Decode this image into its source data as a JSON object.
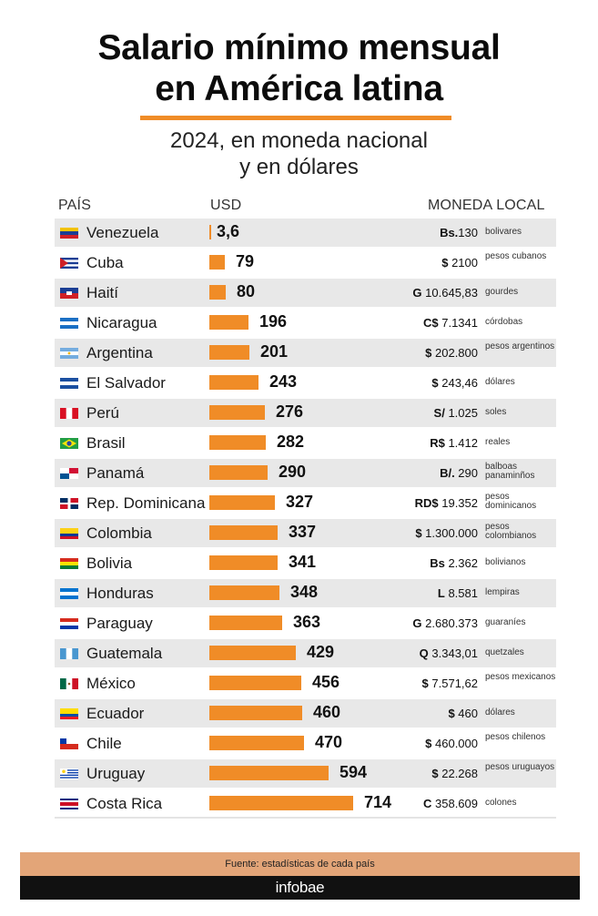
{
  "header": {
    "title_line1": "Salario mínimo mensual",
    "title_line2": "en América latina",
    "subtitle_line1": "2024, en moneda nacional",
    "subtitle_line2": "y en dólares"
  },
  "columns": {
    "country": "PAÍS",
    "usd": "USD",
    "local": "MONEDA LOCAL"
  },
  "chart_data": {
    "type": "bar",
    "categories": [
      "Venezuela",
      "Cuba",
      "Haití",
      "Nicaragua",
      "Argentina",
      "El Salvador",
      "Perú",
      "Brasil",
      "Panamá",
      "Rep. Dominicana",
      "Colombia",
      "Bolivia",
      "Honduras",
      "Paraguay",
      "Guatemala",
      "México",
      "Ecuador",
      "Chile",
      "Uruguay",
      "Costa Rica"
    ],
    "values": [
      3.6,
      79,
      80,
      196,
      201,
      243,
      276,
      282,
      290,
      327,
      337,
      341,
      348,
      363,
      429,
      456,
      460,
      470,
      594,
      714
    ],
    "xlim": [
      0,
      714
    ],
    "bar_color": "#f08c27"
  },
  "rows": [
    {
      "country": "Venezuela",
      "usd": "3,6",
      "sym": "Bs.",
      "amount": "130",
      "currency": "bolivares",
      "flag": "venezuela-flag-icon"
    },
    {
      "country": "Cuba",
      "usd": "79",
      "sym": "$",
      "amount": " 2100",
      "currency": "pesos cubanos",
      "flag": "cuba-flag-icon"
    },
    {
      "country": "Haití",
      "usd": "80",
      "sym": "G",
      "amount": " 10.645,83",
      "currency": "gourdes",
      "flag": "haiti-flag-icon"
    },
    {
      "country": "Nicaragua",
      "usd": "196",
      "sym": "C$",
      "amount": " 7.1341",
      "currency": "córdobas",
      "flag": "nicaragua-flag-icon"
    },
    {
      "country": "Argentina",
      "usd": "201",
      "sym": "$",
      "amount": " 202.800",
      "currency": "pesos argentinos",
      "flag": "argentina-flag-icon"
    },
    {
      "country": "El Salvador",
      "usd": "243",
      "sym": "$",
      "amount": " 243,46",
      "currency": "dólares",
      "flag": "el-salvador-flag-icon"
    },
    {
      "country": "Perú",
      "usd": "276",
      "sym": "S/",
      "amount": " 1.025",
      "currency": "soles",
      "flag": "peru-flag-icon"
    },
    {
      "country": "Brasil",
      "usd": "282",
      "sym": "R$",
      "amount": " 1.412",
      "currency": "reales",
      "flag": "brasil-flag-icon"
    },
    {
      "country": "Panamá",
      "usd": "290",
      "sym": "B/.",
      "amount": " 290",
      "currency": "balboas panaminños",
      "flag": "panama-flag-icon"
    },
    {
      "country": "Rep. Dominicana",
      "usd": "327",
      "sym": "RD$",
      "amount": " 19.352",
      "currency": "pesos dominicanos",
      "flag": "dominican-republic-flag-icon"
    },
    {
      "country": "Colombia",
      "usd": "337",
      "sym": "$",
      "amount": " 1.300.000",
      "currency": "pesos colombianos",
      "flag": "colombia-flag-icon"
    },
    {
      "country": "Bolivia",
      "usd": "341",
      "sym": "Bs",
      "amount": " 2.362",
      "currency": "bolivianos",
      "flag": "bolivia-flag-icon"
    },
    {
      "country": "Honduras",
      "usd": "348",
      "sym": "L",
      "amount": " 8.581",
      "currency": "lempiras",
      "flag": "honduras-flag-icon"
    },
    {
      "country": "Paraguay",
      "usd": "363",
      "sym": "G",
      "amount": " 2.680.373",
      "currency": "guaraníes",
      "flag": "paraguay-flag-icon"
    },
    {
      "country": "Guatemala",
      "usd": "429",
      "sym": "Q",
      "amount": " 3.343,01",
      "currency": "quetzales",
      "flag": "guatemala-flag-icon"
    },
    {
      "country": "México",
      "usd": "456",
      "sym": "$",
      "amount": " 7.571,62",
      "currency": "pesos mexicanos",
      "flag": "mexico-flag-icon"
    },
    {
      "country": "Ecuador",
      "usd": "460",
      "sym": "$",
      "amount": " 460",
      "currency": "dólares",
      "flag": "ecuador-flag-icon"
    },
    {
      "country": "Chile",
      "usd": "470",
      "sym": "$",
      "amount": " 460.000",
      "currency": "pesos chilenos",
      "flag": "chile-flag-icon"
    },
    {
      "country": "Uruguay",
      "usd": "594",
      "sym": "$",
      "amount": " 22.268",
      "currency": "pesos uruguayos",
      "flag": "uruguay-flag-icon"
    },
    {
      "country": "Costa Rica",
      "usd": "714",
      "sym": "C",
      "amount": " 358.609",
      "currency": "colones",
      "flag": "costa-rica-flag-icon"
    }
  ],
  "footer": {
    "source": "Fuente: estadísticas de cada país",
    "brand": "infobae"
  }
}
